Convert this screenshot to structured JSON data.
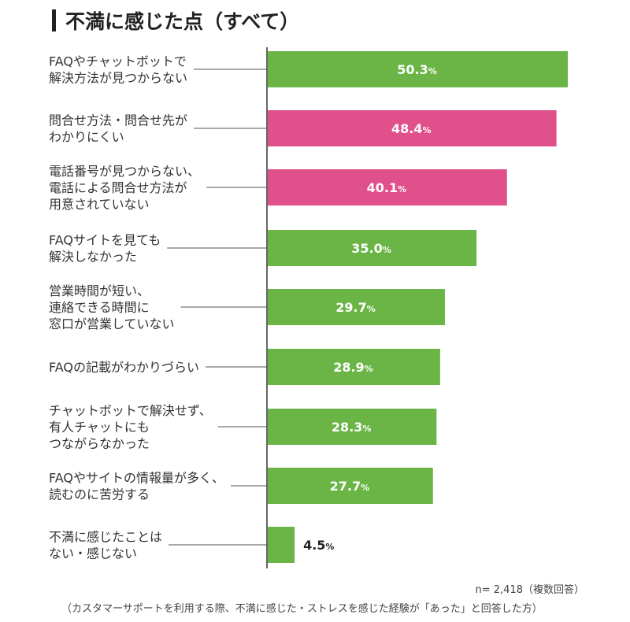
{
  "title": "不満に感じた点（すべて）",
  "chart_data": {
    "type": "bar",
    "orientation": "horizontal",
    "title": "不満に感じた点（すべて）",
    "categories": [
      [
        "FAQやチャットボットで",
        "解決方法が見つからない"
      ],
      [
        "問合せ方法・問合せ先が",
        "わかりにくい"
      ],
      [
        "電話番号が見つからない、",
        "電話による問合せ方法が",
        "用意されていない"
      ],
      [
        "FAQサイトを見ても",
        "解決しなかった"
      ],
      [
        "営業時間が短い、",
        "連絡できる時間に",
        "窓口が営業していない"
      ],
      [
        "FAQの記載がわかりづらい"
      ],
      [
        "チャットボットで解決せず、",
        "有人チャットにも",
        "つながらなかった"
      ],
      [
        "FAQやサイトの情報量が多く、",
        "読むのに苦労する"
      ],
      [
        "不満に感じたことは",
        "ない・感じない"
      ]
    ],
    "values": [
      50.3,
      48.4,
      40.1,
      35.0,
      29.7,
      28.9,
      28.3,
      27.7,
      4.5
    ],
    "value_labels": [
      "50.3",
      "48.4",
      "40.1",
      "35.0",
      "29.7",
      "28.9",
      "28.3",
      "27.7",
      "4.5"
    ],
    "unit": "%",
    "highlight": [
      false,
      true,
      true,
      false,
      false,
      false,
      false,
      false,
      false
    ],
    "colors": {
      "default": "#6ab545",
      "highlight": "#e0508a"
    },
    "xlim": [
      0,
      50.3
    ]
  },
  "notes": {
    "n": "n= 2,418（複数回答）",
    "basis": "（カスタマーサポートを利用する際、不満に感じた・ストレスを感じた経験が「あった」と回答した方）"
  }
}
